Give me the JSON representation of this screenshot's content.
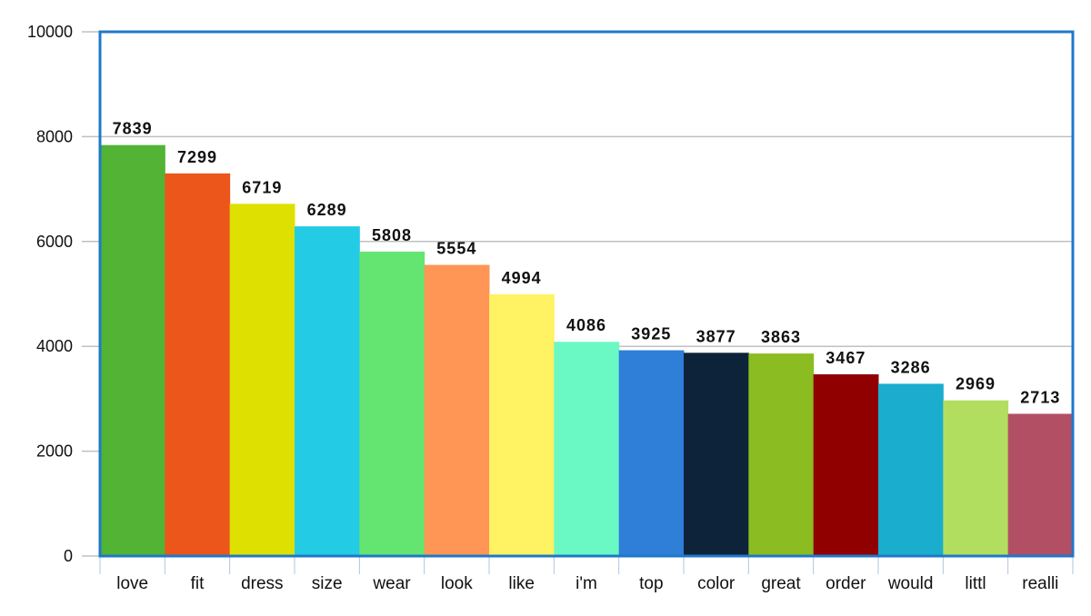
{
  "chart_data": {
    "type": "bar",
    "title": "",
    "xlabel": "",
    "ylabel": "",
    "ylim": [
      0,
      10000
    ],
    "yticks": [
      0,
      2000,
      4000,
      6000,
      8000,
      10000
    ],
    "grid": true,
    "categories": [
      "love",
      "fit",
      "dress",
      "size",
      "wear",
      "look",
      "like",
      "i'm",
      "top",
      "color",
      "great",
      "order",
      "would",
      "littl",
      "realli"
    ],
    "values": [
      7839,
      7299,
      6719,
      6289,
      5808,
      5554,
      4994,
      4086,
      3925,
      3877,
      3863,
      3467,
      3286,
      2969,
      2713
    ],
    "data_labels": [
      "7839",
      "7299",
      "6719",
      "6289",
      "5808",
      "5554",
      "4994",
      "4086",
      "3925",
      "3877",
      "3863",
      "3467",
      "3286",
      "2969",
      "2713"
    ],
    "colors": [
      "#52b334",
      "#ec561b",
      "#dde000",
      "#24cbe5",
      "#64e572",
      "#ff9655",
      "#fff263",
      "#6af9c4",
      "#2f7ed8",
      "#0d233a",
      "#8bbc21",
      "#910000",
      "#1aadce",
      "#b2de5f",
      "#b24f64"
    ],
    "plot_border_color": "#1f78c8",
    "grid_color": "#c0c0c0"
  }
}
